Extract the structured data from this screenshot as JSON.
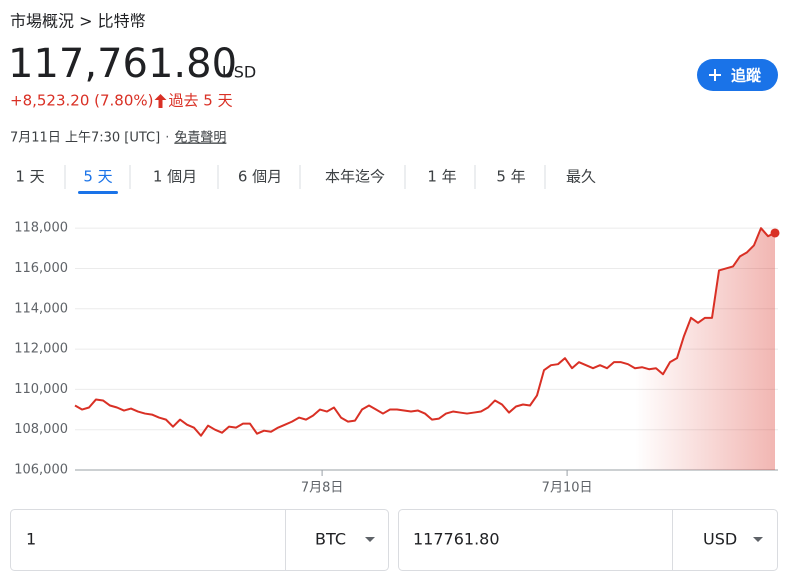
{
  "breadcrumb": "市場概況 > 比特幣",
  "price": "117,761.80",
  "currency": "USD",
  "change": "+8,523.20 (7.80%)",
  "period": "過去 5 天",
  "timestamp": "7月11日 上午7:30 [UTC]",
  "separator": "·",
  "disclaimer": "免責聲明",
  "follow_button": "追蹤",
  "tabs": [
    "1 天",
    "5 天",
    "1 個月",
    "6 個月",
    "本年迄今",
    "1 年",
    "5 年",
    "最久"
  ],
  "active_tab": 1,
  "chart_data": {
    "type": "line",
    "x": [
      0,
      1,
      2,
      3,
      4,
      5,
      6,
      7,
      8,
      9,
      10,
      11,
      12,
      13,
      14,
      15,
      16,
      17,
      18,
      19,
      20,
      21,
      22,
      23,
      24,
      25,
      26,
      27,
      28,
      29,
      30,
      31,
      32,
      33,
      34,
      35,
      36,
      37,
      38,
      39,
      40,
      41,
      42,
      43,
      44,
      45,
      46,
      47,
      48,
      49,
      50,
      51,
      52,
      53,
      54,
      55,
      56,
      57,
      58,
      59,
      60,
      61,
      62,
      63,
      64,
      65,
      66,
      67,
      68,
      69,
      70,
      71,
      72,
      73,
      74,
      75,
      76,
      77,
      78,
      79,
      80,
      81,
      82,
      83,
      84,
      85,
      86,
      87,
      88,
      89,
      90,
      91,
      92,
      93,
      94,
      95,
      96,
      97,
      98,
      99,
      100
    ],
    "series": [
      {
        "color": "#d93025",
        "values": [
          109200,
          109000,
          109100,
          109500,
          109450,
          109200,
          109100,
          108950,
          109050,
          108900,
          108800,
          108750,
          108600,
          108500,
          108150,
          108500,
          108250,
          108100,
          107700,
          108200,
          108000,
          107850,
          108150,
          108100,
          108300,
          108300,
          107800,
          107950,
          107900,
          108100,
          108250,
          108400,
          108600,
          108500,
          108700,
          109000,
          108900,
          109100,
          108600,
          108400,
          108450,
          109000,
          109200,
          109000,
          108800,
          109000,
          109000,
          108950,
          108900,
          108950,
          108800,
          108500,
          108550,
          108800,
          108900,
          108850,
          108800,
          108850,
          108900,
          109100,
          109450,
          109250,
          108850,
          109150,
          109250,
          109200,
          109700,
          110950,
          111200,
          111250,
          111550,
          111050,
          111350,
          111200,
          111050,
          111200,
          111050,
          111350,
          111350,
          111250,
          111050,
          111100,
          111000,
          111050,
          110750,
          111350,
          111550,
          112650,
          113550,
          113300,
          113550,
          113550,
          115900,
          116000,
          116100,
          116600,
          116800,
          117150,
          118000,
          117600,
          117761.8
        ]
      }
    ],
    "xlim": [
      0,
      100
    ],
    "xticks": [
      {
        "value": 35.3,
        "label": "7月8日"
      },
      {
        "value": 70.3,
        "label": "7月10日"
      }
    ],
    "ylim": [
      106000,
      118900
    ],
    "yticks": [
      {
        "value": 106000,
        "label": "106,000"
      },
      {
        "value": 108000,
        "label": "108,000"
      },
      {
        "value": 110000,
        "label": "110,000"
      },
      {
        "value": 112000,
        "label": "112,000"
      },
      {
        "value": 114000,
        "label": "114,000"
      },
      {
        "value": 116000,
        "label": "116,000"
      },
      {
        "value": 118000,
        "label": "118,000"
      }
    ],
    "grid": true
  },
  "converter": {
    "from_amount": "1",
    "from_currency": "BTC",
    "to_amount": "117761.80",
    "to_currency": "USD"
  }
}
